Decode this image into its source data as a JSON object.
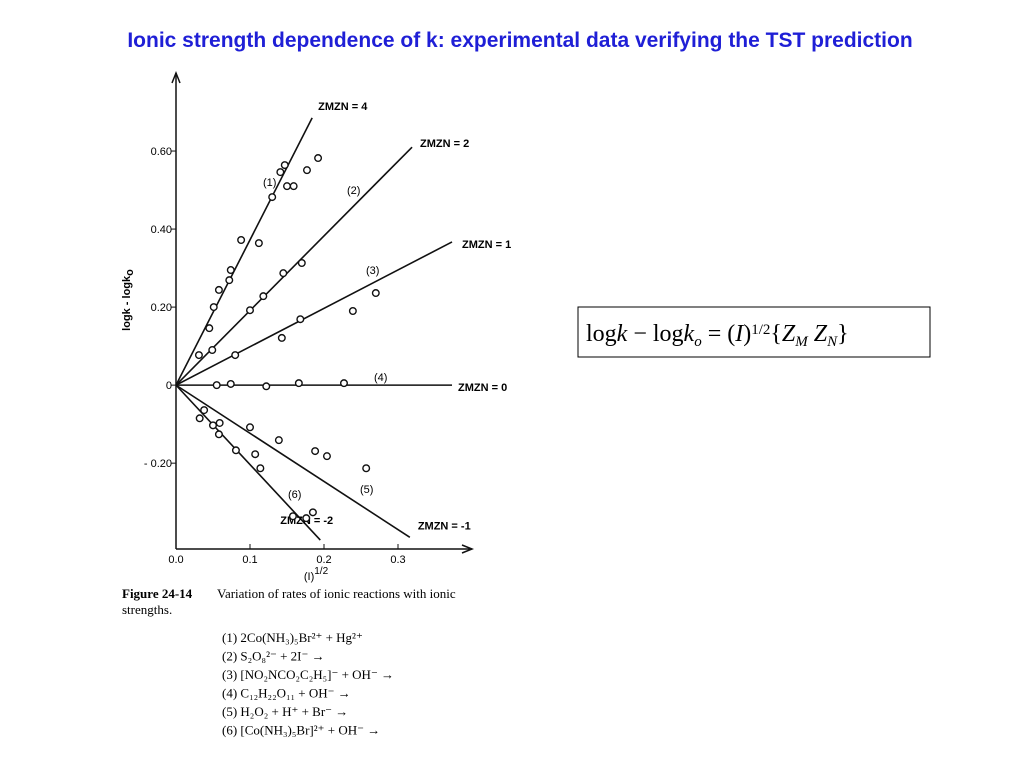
{
  "title": "Ionic strength dependence of k: experimental data verifying the TST prediction",
  "chart_data": {
    "type": "line",
    "x_label": "(I)",
    "x_label_sup": "1/2",
    "y_label": "logk - logk",
    "y_label_sub": "o",
    "xlim": [
      0,
      0.4
    ],
    "ylim": [
      -0.42,
      0.8
    ],
    "xticks": [
      {
        "value": 0,
        "label": "0.0"
      },
      0.1,
      0.2,
      0.3
    ],
    "yticks": [
      {
        "value": -0.2,
        "label": "- 0.20"
      },
      0,
      {
        "value": 0.2,
        "label": "0.20"
      },
      {
        "value": 0.4,
        "label": "0.40"
      },
      {
        "value": 0.6,
        "label": "0.60"
      }
    ],
    "color": "#111111",
    "series": [
      {
        "name": "ZMZN = 4",
        "x": [
          0,
          0.184
        ],
        "values": [
          0,
          0.685
        ]
      },
      {
        "name": "ZMZN = 2",
        "x": [
          0,
          0.319
        ],
        "values": [
          0,
          0.61
        ]
      },
      {
        "name": "ZMZN = 1",
        "x": [
          0,
          0.373
        ],
        "values": [
          0,
          0.367
        ]
      },
      {
        "name": "ZMZN = 0",
        "x": [
          0,
          0.373
        ],
        "values": [
          0,
          0
        ]
      },
      {
        "name": "ZMZN = -1",
        "x": [
          0,
          0.316
        ],
        "values": [
          0,
          -0.39
        ]
      },
      {
        "name": "ZMZN = -2",
        "x": [
          0,
          0.195
        ],
        "values": [
          0,
          -0.397
        ]
      }
    ],
    "markers": [
      {
        "name": "(1)",
        "x": [
          0.045,
          0.058,
          0.074,
          0.088,
          0.112,
          0.13,
          0.141,
          0.147,
          0.15,
          0.159,
          0.177,
          0.192
        ],
        "values": [
          0.146,
          0.244,
          0.295,
          0.372,
          0.364,
          0.482,
          0.546,
          0.564,
          0.51,
          0.51,
          0.551,
          0.582
        ]
      },
      {
        "name": "(2)",
        "x": [
          0.031,
          0.051,
          0.072,
          0.1,
          0.118,
          0.145,
          0.17
        ],
        "values": [
          0.077,
          0.2,
          0.269,
          0.192,
          0.228,
          0.287,
          0.313
        ]
      },
      {
        "name": "(3)",
        "x": [
          0.049,
          0.08,
          0.143,
          0.168,
          0.239,
          0.27
        ],
        "values": [
          0.09,
          0.077,
          0.121,
          0.169,
          0.19,
          0.236
        ]
      },
      {
        "name": "(4)",
        "x": [
          0.055,
          0.074,
          0.122,
          0.166,
          0.227
        ],
        "values": [
          0,
          0.003,
          -0.003,
          0.005,
          0.005
        ]
      },
      {
        "name": "(5)",
        "x": [
          0.038,
          0.059,
          0.1,
          0.139,
          0.188,
          0.204,
          0.257
        ],
        "values": [
          -0.064,
          -0.097,
          -0.108,
          -0.141,
          -0.169,
          -0.182,
          -0.213
        ]
      },
      {
        "name": "(6)",
        "x": [
          0.032,
          0.05,
          0.058,
          0.081,
          0.107,
          0.114,
          0.158,
          0.176,
          0.185
        ],
        "values": [
          -0.085,
          -0.103,
          -0.126,
          -0.167,
          -0.177,
          -0.213,
          -0.336,
          -0.341,
          -0.326
        ]
      }
    ]
  },
  "equation": [
    {
      "t": "log"
    },
    {
      "t": "k",
      "i": true
    },
    {
      "t": " − log"
    },
    {
      "t": "k",
      "i": true
    },
    {
      "t": "o",
      "i": true,
      "pos": "sub"
    },
    {
      "t": " = ("
    },
    {
      "t": "I",
      "i": true
    },
    {
      "t": ")"
    },
    {
      "t": "1/2",
      "pos": "sup"
    },
    {
      "t": "{"
    },
    {
      "t": "Z",
      "i": true
    },
    {
      "t": "M",
      "i": true,
      "pos": "sub"
    },
    {
      "t": " Z",
      "i": true
    },
    {
      "t": "N",
      "i": true,
      "pos": "sub"
    },
    {
      "t": "}"
    }
  ],
  "caption": {
    "label": "Figure 24-14",
    "lines": [
      "Variation of rates of ionic reactions with ionic",
      "strengths."
    ]
  },
  "reactions": [
    "(1)  2Co(NH₃)₅Br²⁺ + Hg²⁺",
    "(2)  S₂O₈²⁻ + 2I⁻ →",
    "(3)  [NO₂NCO₂C₂H₅]⁻ + OH⁻ →",
    "(4)  C₁₂H₂₂O₁₁ + OH⁻ →",
    "(5)  H₂O₂ + H⁺ + Br⁻ →",
    "(6)  [Co(NH₃)₅Br]²⁺ + OH⁻ →"
  ]
}
